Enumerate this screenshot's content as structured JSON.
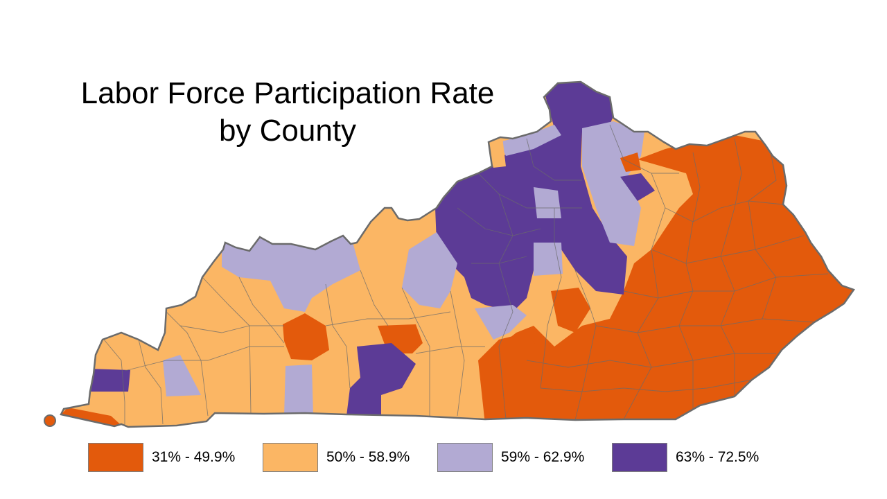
{
  "title": {
    "line1": "Labor Force Participation Rate",
    "line2": "by County"
  },
  "colors": {
    "class1": "#e35a0c",
    "class2": "#fbb664",
    "class3": "#b2aad3",
    "class4": "#5c3b96",
    "border": "#6b6b6b"
  },
  "legend": [
    {
      "label": "31% - 49.9%",
      "color": "#e35a0c"
    },
    {
      "label": "50% - 58.9%",
      "color": "#fbb664"
    },
    {
      "label": "59% - 62.9%",
      "color": "#b2aad3"
    },
    {
      "label": "63% - 72.5%",
      "color": "#5c3b96"
    }
  ]
}
